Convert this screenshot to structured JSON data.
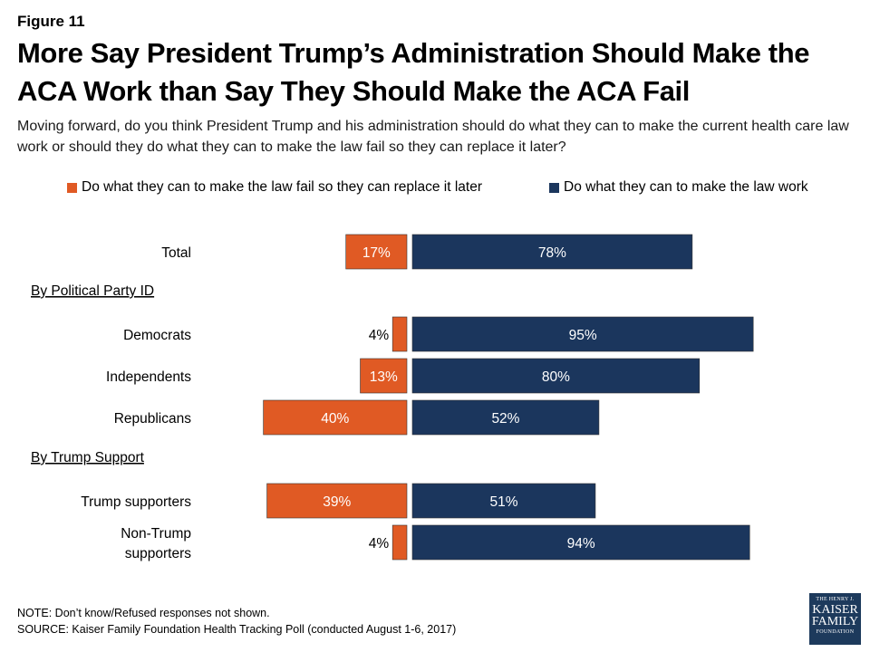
{
  "figure_label": "Figure 11",
  "title": "More Say President Trump’s Administration Should Make the ACA Work than Say They Should Make the ACA Fail",
  "subtitle": "Moving forward, do you think President Trump and his administration should do what they can to make the current health care law work or should they do what they can to make the law fail so they can replace it later?",
  "colors": {
    "fail": "#e05a24",
    "work": "#1b365d"
  },
  "chart_data": {
    "type": "bar",
    "orientation": "horizontal-diverging",
    "series": [
      {
        "name": "Do what they can to make the law fail so they can replace it later",
        "color": "#e05a24",
        "values": [
          17,
          4,
          13,
          40,
          39,
          4
        ]
      },
      {
        "name": "Do what they can to make the law work",
        "color": "#1b365d",
        "values": [
          78,
          95,
          80,
          52,
          51,
          94
        ]
      }
    ],
    "categories": [
      "Total",
      "Democrats",
      "Independents",
      "Republicans",
      "Trump supporters",
      "Non-Trump supporters"
    ],
    "category_lines": [
      [
        "Total"
      ],
      [
        "Democrats"
      ],
      [
        "Independents"
      ],
      [
        "Republicans"
      ],
      [
        "Trump supporters"
      ],
      [
        "Non-Trump",
        "supporters"
      ]
    ],
    "groups": [
      {
        "label": "By Political Party ID",
        "before_index": 1
      },
      {
        "label": "By Trump Support",
        "before_index": 4
      }
    ],
    "value_suffix": "%",
    "legend_position": "top"
  },
  "note": "NOTE: Don’t know/Refused responses not shown.",
  "source": "SOURCE: Kaiser Family Foundation Health Tracking Poll (conducted August 1-6, 2017)",
  "logo": {
    "line1": "THE HENRY J.",
    "line2": "KAISER",
    "line3": "FAMILY",
    "line4": "FOUNDATION"
  }
}
